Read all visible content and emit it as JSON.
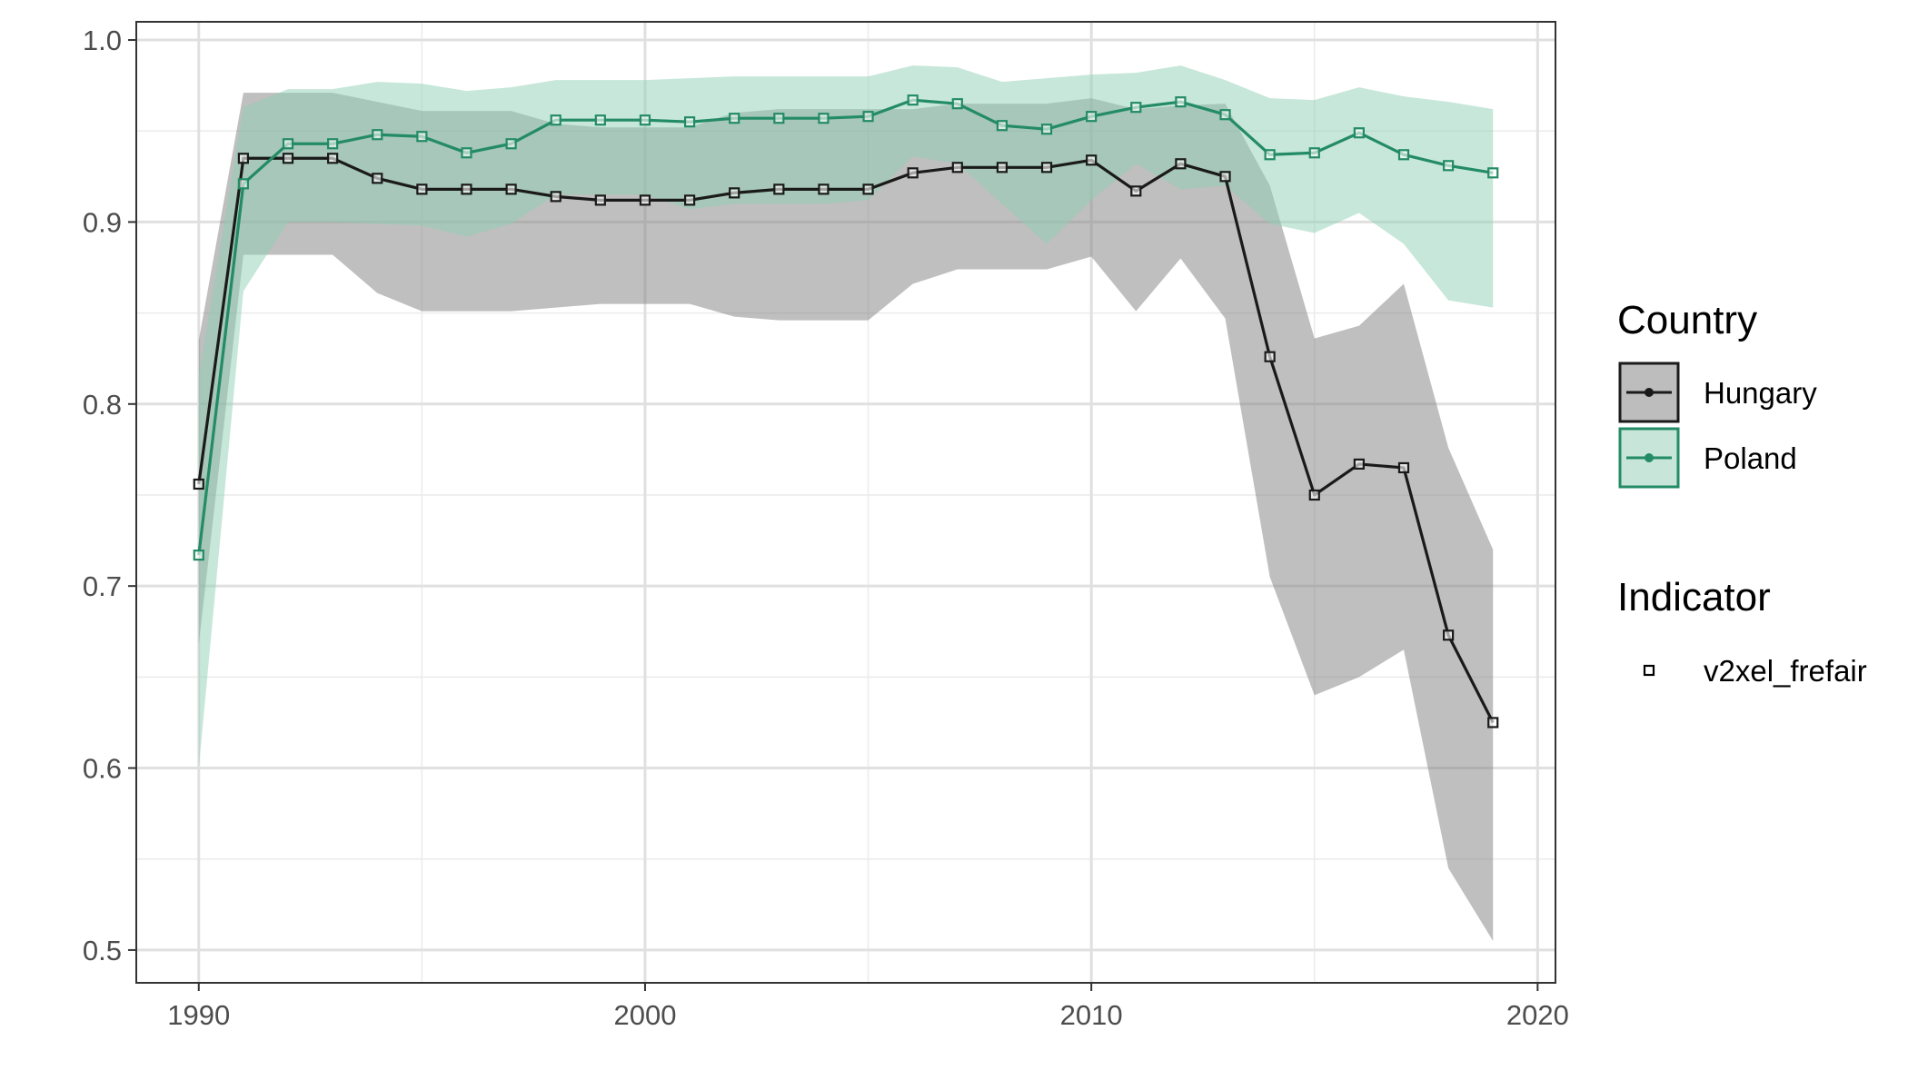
{
  "chart_data": {
    "type": "line",
    "title": "",
    "xlabel": "",
    "ylabel": "",
    "xlim": [
      1988.6,
      2020.4
    ],
    "ylim": [
      0.482,
      1.01
    ],
    "x_ticks": [
      1990,
      2000,
      2010,
      2020
    ],
    "x_tick_labels": [
      "1990",
      "2000",
      "2010",
      "2020"
    ],
    "y_ticks": [
      0.5,
      0.6,
      0.7,
      0.8,
      0.9,
      1.0
    ],
    "y_tick_labels": [
      "0.5",
      "0.6",
      "0.7",
      "0.8",
      "0.9",
      "1.0"
    ],
    "grid": true,
    "legend_placement": "right",
    "x": [
      1990,
      1991,
      1992,
      1993,
      1994,
      1995,
      1996,
      1997,
      1998,
      1999,
      2000,
      2001,
      2002,
      2003,
      2004,
      2005,
      2006,
      2007,
      2008,
      2009,
      2010,
      2011,
      2012,
      2013,
      2014,
      2015,
      2016,
      2017,
      2018,
      2019
    ],
    "series": [
      {
        "name": "Hungary",
        "color": "#1a1a1a",
        "band_color": "#808080",
        "values": [
          0.756,
          0.935,
          0.935,
          0.935,
          0.924,
          0.918,
          0.918,
          0.918,
          0.914,
          0.912,
          0.912,
          0.912,
          0.916,
          0.918,
          0.918,
          0.918,
          0.927,
          0.93,
          0.93,
          0.93,
          0.934,
          0.917,
          0.932,
          0.925,
          0.826,
          0.75,
          0.767,
          0.765,
          0.673,
          0.625
        ],
        "lower": [
          0.668,
          0.882,
          0.882,
          0.882,
          0.861,
          0.851,
          0.851,
          0.851,
          0.853,
          0.855,
          0.855,
          0.855,
          0.848,
          0.846,
          0.846,
          0.846,
          0.866,
          0.874,
          0.874,
          0.874,
          0.881,
          0.851,
          0.88,
          0.847,
          0.705,
          0.64,
          0.65,
          0.665,
          0.545,
          0.505
        ],
        "upper": [
          0.835,
          0.971,
          0.971,
          0.971,
          0.966,
          0.961,
          0.961,
          0.961,
          0.954,
          0.952,
          0.952,
          0.952,
          0.96,
          0.962,
          0.962,
          0.962,
          0.962,
          0.965,
          0.965,
          0.965,
          0.968,
          0.962,
          0.964,
          0.965,
          0.92,
          0.836,
          0.843,
          0.866,
          0.776,
          0.72
        ]
      },
      {
        "name": "Poland",
        "color": "#238b65",
        "band_color": "#8ecfb4",
        "values": [
          0.717,
          0.921,
          0.943,
          0.943,
          0.948,
          0.947,
          0.938,
          0.943,
          0.956,
          0.956,
          0.956,
          0.955,
          0.957,
          0.957,
          0.957,
          0.958,
          0.967,
          0.965,
          0.953,
          0.951,
          0.958,
          0.963,
          0.966,
          0.959,
          0.937,
          0.938,
          0.949,
          0.937,
          0.931,
          0.927
        ],
        "lower": [
          0.6,
          0.862,
          0.9,
          0.9,
          0.899,
          0.898,
          0.892,
          0.899,
          0.915,
          0.915,
          0.915,
          0.907,
          0.91,
          0.91,
          0.91,
          0.912,
          0.936,
          0.932,
          0.91,
          0.888,
          0.912,
          0.932,
          0.918,
          0.92,
          0.899,
          0.894,
          0.905,
          0.888,
          0.857,
          0.853
        ],
        "upper": [
          0.815,
          0.963,
          0.973,
          0.973,
          0.977,
          0.976,
          0.972,
          0.974,
          0.978,
          0.978,
          0.978,
          0.979,
          0.98,
          0.98,
          0.98,
          0.98,
          0.986,
          0.985,
          0.977,
          0.979,
          0.981,
          0.982,
          0.986,
          0.978,
          0.968,
          0.967,
          0.974,
          0.969,
          0.966,
          0.962
        ]
      }
    ],
    "legend": {
      "country_title": "Country",
      "country_items": [
        "Hungary",
        "Poland"
      ],
      "indicator_title": "Indicator",
      "indicator_items": [
        "v2xel_frefair"
      ]
    }
  }
}
